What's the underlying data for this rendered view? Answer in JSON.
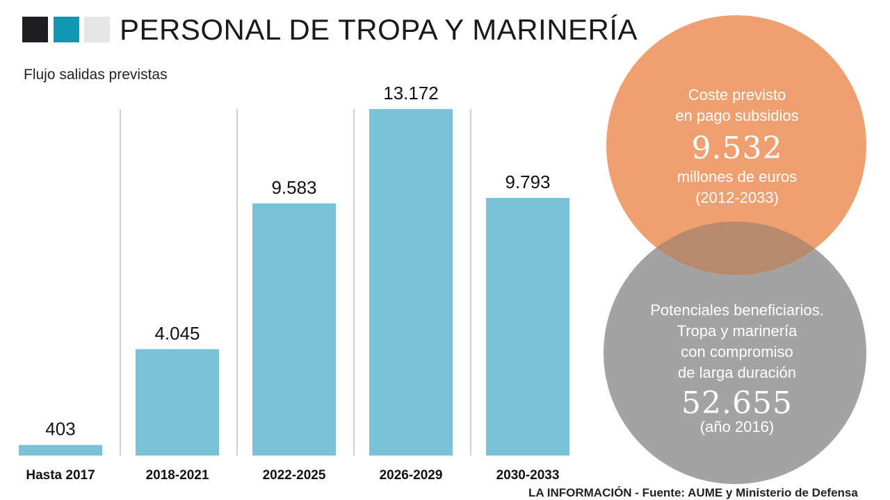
{
  "header": {
    "title": "PERSONAL DE TROPA Y MARINERÍA",
    "squares": [
      "#1e1e20",
      "#0f97b4",
      "#e6e6e6"
    ]
  },
  "chart_data": {
    "type": "bar",
    "title": "PERSONAL DE TROPA Y MARINERÍA",
    "subtitle": "Flujo salidas previstas",
    "categories": [
      "Hasta 2017",
      "2018-2021",
      "2022-2025",
      "2026-2029",
      "2030-2033"
    ],
    "values": [
      403,
      4045,
      9583,
      13172,
      9793
    ],
    "value_labels": [
      "403",
      "4.045",
      "9.583",
      "13.172",
      "9.793"
    ],
    "ylim": [
      0,
      13172
    ],
    "xlabel": "",
    "ylabel": "",
    "grid": false,
    "bar_color": "#7ac2d5",
    "separator_color": "#cfcfcf"
  },
  "circles": {
    "cost": {
      "color": "#f0a070",
      "lines_top": [
        "Coste previsto",
        "en pago subsidios"
      ],
      "big_number": "9.532",
      "lines_bottom": [
        "millones de euros",
        "(2012-2033)"
      ]
    },
    "beneficiaries": {
      "color": "#a3a3a3",
      "overlap_color": "#b88a6d",
      "lines_top": [
        "Potenciales beneficiarios.",
        "Tropa y marinería",
        "con compromiso",
        "de larga duración"
      ],
      "big_number": "52.655",
      "lines_bottom": [
        "(año 2016)"
      ]
    }
  },
  "footer": {
    "source": "LA INFORMACIÓN - Fuente: AUME y Ministerio de Defensa"
  }
}
